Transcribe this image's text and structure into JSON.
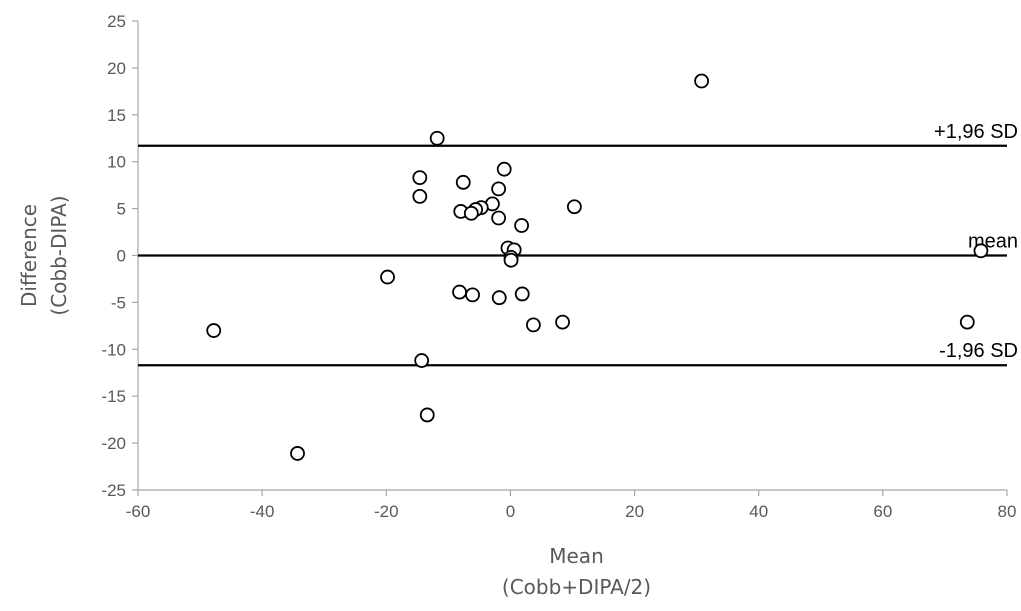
{
  "chart_data": {
    "type": "scatter",
    "title": "",
    "xlabel": [
      "Mean",
      "(Cobb+DIPA/2)"
    ],
    "ylabel": [
      "Difference",
      "(Cobb-DIPA)"
    ],
    "xlim": [
      -60,
      80
    ],
    "ylim": [
      -25,
      25
    ],
    "x_ticks": [
      -60,
      -40,
      -20,
      0,
      20,
      40,
      60,
      80
    ],
    "y_ticks": [
      -25,
      -20,
      -15,
      -10,
      -5,
      0,
      5,
      10,
      15,
      20,
      25
    ],
    "grid": false,
    "legend": "none",
    "marker": "open-circle",
    "colors": {
      "marker_stroke": "#000000",
      "axis": "#a6a6a6",
      "reference_line": "#000000",
      "tick_text": "#595959"
    },
    "reference_lines": [
      {
        "label": "+1,96 SD",
        "y": 11.7
      },
      {
        "label": "mean",
        "y": 0
      },
      {
        "label": "-1,96 SD",
        "y": -11.7
      }
    ],
    "points": [
      {
        "x": 30.8,
        "y": 18.6
      },
      {
        "x": -11.8,
        "y": 12.5
      },
      {
        "x": -1.0,
        "y": 9.2
      },
      {
        "x": -14.6,
        "y": 8.3
      },
      {
        "x": -7.6,
        "y": 7.8
      },
      {
        "x": -1.9,
        "y": 7.1
      },
      {
        "x": -14.6,
        "y": 6.3
      },
      {
        "x": -2.9,
        "y": 5.5
      },
      {
        "x": 10.3,
        "y": 5.2
      },
      {
        "x": -4.7,
        "y": 5.1
      },
      {
        "x": -5.6,
        "y": 4.9
      },
      {
        "x": -8.0,
        "y": 4.7
      },
      {
        "x": -6.3,
        "y": 4.5
      },
      {
        "x": -1.9,
        "y": 4.0
      },
      {
        "x": 1.8,
        "y": 3.2
      },
      {
        "x": -0.4,
        "y": 0.8
      },
      {
        "x": 0.6,
        "y": 0.6
      },
      {
        "x": 0.1,
        "y": -0.2
      },
      {
        "x": 0.1,
        "y": -0.5
      },
      {
        "x": 75.8,
        "y": 0.5
      },
      {
        "x": -19.8,
        "y": -2.3
      },
      {
        "x": -8.2,
        "y": -3.9
      },
      {
        "x": -6.1,
        "y": -4.2
      },
      {
        "x": 1.9,
        "y": -4.1
      },
      {
        "x": -1.8,
        "y": -4.5
      },
      {
        "x": 3.7,
        "y": -7.4
      },
      {
        "x": 8.4,
        "y": -7.1
      },
      {
        "x": 73.6,
        "y": -7.1
      },
      {
        "x": -47.8,
        "y": -8.0
      },
      {
        "x": -14.3,
        "y": -11.2
      },
      {
        "x": -13.4,
        "y": -17.0
      },
      {
        "x": -34.3,
        "y": -21.1
      }
    ]
  }
}
